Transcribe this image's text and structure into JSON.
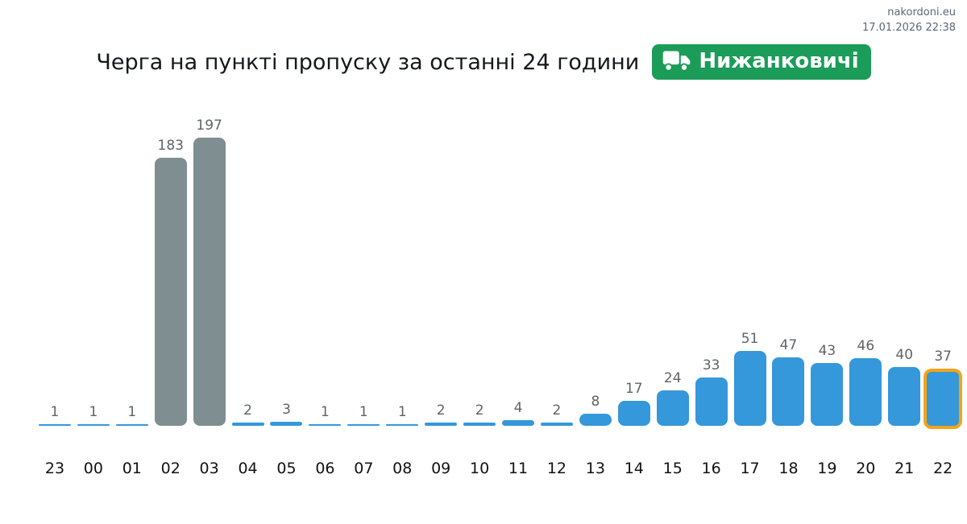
{
  "meta": {
    "site_label": "nakordoni.eu",
    "datetime_label": "17.01.2026 22:38"
  },
  "header": {
    "title": "Черга на пункті пропуску за останні 24 години",
    "badge": {
      "label": "Нижанковичі",
      "icon": "truck-icon",
      "bg_color": "#1b9c58",
      "text_color": "#ffffff"
    }
  },
  "chart_data": {
    "type": "bar",
    "title": "Черга на пункті пропуску за останні 24 години",
    "xlabel": "",
    "ylabel": "",
    "categories": [
      "23",
      "00",
      "01",
      "02",
      "03",
      "04",
      "05",
      "06",
      "07",
      "08",
      "09",
      "10",
      "11",
      "12",
      "13",
      "14",
      "15",
      "16",
      "17",
      "18",
      "19",
      "20",
      "21",
      "22"
    ],
    "values": [
      1,
      1,
      1,
      183,
      197,
      2,
      3,
      1,
      1,
      1,
      2,
      2,
      4,
      2,
      8,
      17,
      24,
      33,
      51,
      47,
      43,
      46,
      40,
      37
    ],
    "bar_palette": [
      "default",
      "default",
      "default",
      "peak",
      "peak",
      "default",
      "default",
      "default",
      "default",
      "default",
      "default",
      "default",
      "default",
      "default",
      "default",
      "default",
      "default",
      "default",
      "default",
      "default",
      "default",
      "default",
      "default",
      "highlighted"
    ],
    "highlight_index": 23,
    "ylim": [
      0,
      197
    ],
    "grid": false,
    "legend": false,
    "value_labels_shown": true,
    "colors": {
      "bar_default": "#3498db",
      "bar_peak": "#7f8e90",
      "highlight_border": "#f5a31a",
      "value_label": "#5f6368",
      "axis_label": "#121212"
    }
  }
}
